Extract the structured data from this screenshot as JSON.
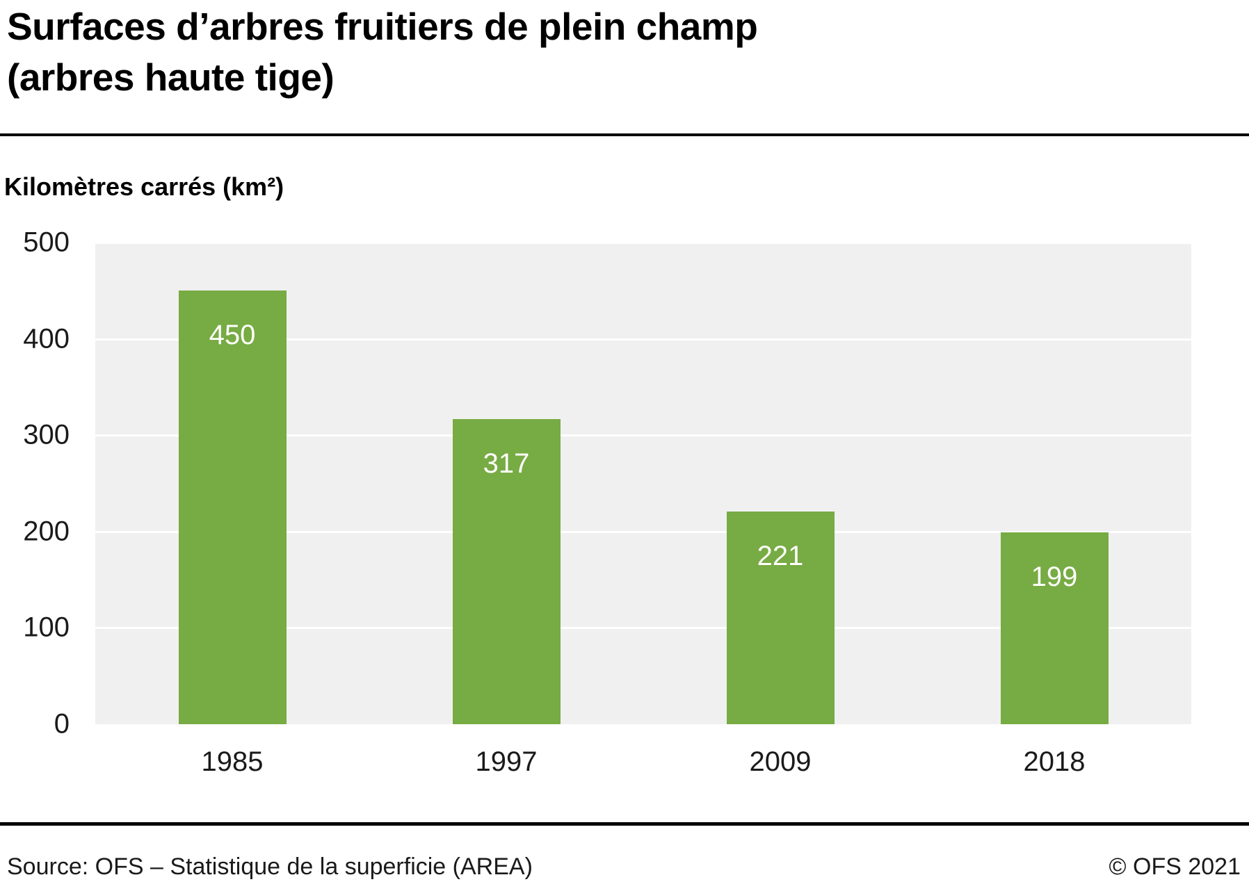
{
  "title": {
    "line1": "Surfaces d’arbres fruitiers de plein champ",
    "line2": "(arbres haute tige)"
  },
  "axis_unit_label": "Kilomètres carrés (km²)",
  "footer": {
    "source": "Source: OFS – Statistique de la superficie (AREA)",
    "copyright": "© OFS 2021"
  },
  "chart_data": {
    "type": "bar",
    "title": "Surfaces d’arbres fruitiers de plein champ (arbres haute tige)",
    "categories": [
      "1985",
      "1997",
      "2009",
      "2018"
    ],
    "values": [
      450,
      317,
      221,
      199
    ],
    "xlabel": "",
    "ylabel": "Kilomètres carrés (km²)",
    "ylim": [
      0,
      500
    ],
    "yticks": [
      0,
      100,
      200,
      300,
      400,
      500
    ],
    "grid": true,
    "legend": "none",
    "bar_color": "#77ab43",
    "value_label_color": "#ffffff",
    "plot_background": "#f0f0f0"
  }
}
